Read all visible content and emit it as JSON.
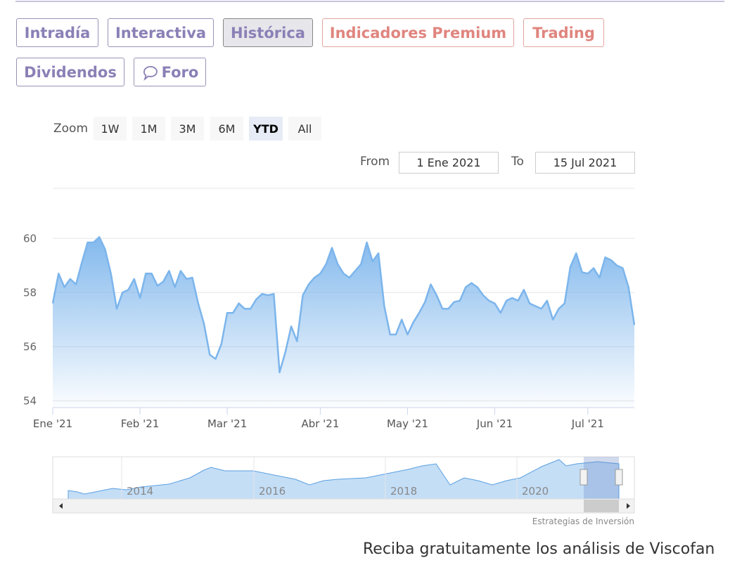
{
  "tabs": [
    "Intradía",
    "Interactiva",
    "Histórica",
    "Indicadores Premium",
    "Trading",
    "Dividendos",
    "Foro"
  ],
  "zoom": {
    "label": "Zoom",
    "buttons": [
      "1W",
      "1M",
      "3M",
      "6M",
      "YTD",
      "All"
    ]
  },
  "range": {
    "from_label": "From",
    "from": "1 Ene 2021",
    "to_label": "To",
    "to": "15 Jul 2021"
  },
  "chart_data": {
    "type": "area",
    "color": "#7cb5ec",
    "categories": [
      "Ene '21",
      null,
      null,
      null,
      null,
      null,
      null,
      null,
      null,
      null,
      null,
      null,
      null,
      null,
      null,
      "Feb '21",
      null,
      null,
      null,
      null,
      null,
      null,
      null,
      null,
      null,
      null,
      null,
      null,
      null,
      null,
      "Mar '21",
      null,
      null,
      null,
      null,
      null,
      null,
      null,
      null,
      null,
      null,
      null,
      null,
      null,
      null,
      null,
      "Abr '21",
      null,
      null,
      null,
      null,
      null,
      null,
      null,
      null,
      null,
      null,
      null,
      null,
      null,
      null,
      "May '21",
      null,
      null,
      null,
      null,
      null,
      null,
      null,
      null,
      null,
      null,
      null,
      null,
      null,
      null,
      "Jun '21",
      null,
      null,
      null,
      null,
      null,
      null,
      null,
      null,
      null,
      null,
      null,
      null,
      null,
      null,
      null,
      "Jul '21",
      null,
      null,
      null,
      null,
      null,
      null,
      null,
      null
    ],
    "values": [
      57.6,
      58.7,
      58.2,
      58.5,
      58.3,
      59.1,
      59.85,
      59.85,
      60.05,
      59.6,
      58.7,
      57.4,
      58.0,
      58.1,
      58.5,
      57.8,
      58.7,
      58.7,
      58.25,
      58.4,
      58.8,
      58.2,
      58.8,
      58.5,
      58.55,
      57.6,
      56.85,
      55.7,
      55.55,
      56.1,
      57.25,
      57.25,
      57.6,
      57.4,
      57.4,
      57.75,
      57.95,
      57.9,
      57.95,
      55.05,
      55.8,
      56.75,
      56.2,
      57.9,
      58.3,
      58.55,
      58.7,
      59.05,
      59.65,
      59.05,
      58.7,
      58.55,
      58.8,
      59.05,
      59.85,
      59.15,
      59.45,
      57.5,
      56.45,
      56.45,
      57.0,
      56.45,
      56.9,
      57.25,
      57.65,
      58.3,
      57.9,
      57.4,
      57.4,
      57.65,
      57.7,
      58.2,
      58.35,
      58.2,
      57.9,
      57.7,
      57.6,
      57.25,
      57.7,
      57.8,
      57.7,
      58.1,
      57.6,
      57.5,
      57.4,
      57.7,
      57.0,
      57.4,
      57.6,
      58.95,
      59.45,
      58.75,
      58.7,
      58.9,
      58.55,
      59.3,
      59.2,
      59.0,
      58.9,
      58.2,
      56.8
    ],
    "ylim": [
      53.75,
      61.85
    ],
    "yticks": [
      54,
      56,
      58,
      60
    ],
    "grid": true
  },
  "navigator": {
    "labels": [
      "2014",
      "2016",
      "2018",
      "2020"
    ]
  },
  "credit": "Estrategias de Inversión",
  "footer": "Reciba gratuitamente los análisis de Viscofan"
}
